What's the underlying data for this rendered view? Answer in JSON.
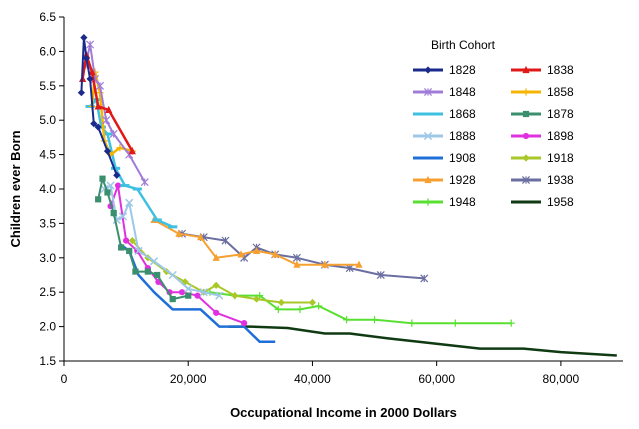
{
  "chart_data": {
    "type": "line",
    "xlabel": "Occupational Income in 2000 Dollars",
    "ylabel": "Children ever Born",
    "xlim": [
      0,
      90000
    ],
    "ylim": [
      1.5,
      6.5
    ],
    "x_ticks": [
      0,
      20000,
      40000,
      60000,
      80000
    ],
    "x_tick_labels": [
      "0",
      "20,000",
      "40,000",
      "60,000",
      "80,000"
    ],
    "y_ticks": [
      1.5,
      2.0,
      2.5,
      3.0,
      3.5,
      4.0,
      4.5,
      5.0,
      5.5,
      6.0,
      6.5
    ],
    "y_tick_labels": [
      "1.5",
      "2.0",
      "2.5",
      "3.0",
      "3.5",
      "4.0",
      "4.5",
      "5.0",
      "5.5",
      "6.0",
      "6.5"
    ],
    "grid": false,
    "legend": {
      "title": "Birth Cohort",
      "placement": "top-right",
      "columns": 2
    },
    "series": [
      {
        "name": "1828",
        "color": "#1a2a8c",
        "marker": "diamond",
        "width": 2,
        "points": [
          [
            2800,
            5.4
          ],
          [
            3200,
            6.2
          ],
          [
            3600,
            5.9
          ],
          [
            4200,
            5.6
          ],
          [
            4800,
            4.95
          ],
          [
            5500,
            4.9
          ],
          [
            7000,
            4.55
          ],
          [
            8500,
            4.2
          ]
        ]
      },
      {
        "name": "1838",
        "color": "#e01818",
        "marker": "triangle",
        "width": 2.5,
        "points": [
          [
            3000,
            5.6
          ],
          [
            3600,
            5.95
          ],
          [
            4500,
            5.7
          ],
          [
            5500,
            5.2
          ],
          [
            7200,
            5.15
          ],
          [
            11000,
            4.55
          ]
        ]
      },
      {
        "name": "1848",
        "color": "#a07cd8",
        "marker": "star",
        "width": 2,
        "points": [
          [
            3500,
            5.8
          ],
          [
            4200,
            6.1
          ],
          [
            5000,
            5.6
          ],
          [
            5800,
            5.5
          ],
          [
            6800,
            5.0
          ],
          [
            8000,
            4.8
          ],
          [
            10500,
            4.5
          ],
          [
            13000,
            4.1
          ]
        ]
      },
      {
        "name": "1858",
        "color": "#f5b400",
        "marker": "plus",
        "width": 2.5,
        "points": [
          [
            4500,
            5.2
          ],
          [
            5000,
            5.7
          ],
          [
            5800,
            5.4
          ],
          [
            6500,
            4.7
          ],
          [
            7500,
            4.5
          ],
          [
            9000,
            4.6
          ],
          [
            11000,
            4.55
          ]
        ]
      },
      {
        "name": "1868",
        "color": "#3ec0e0",
        "marker": "dash",
        "width": 2.5,
        "points": [
          [
            4200,
            5.2
          ],
          [
            5200,
            5.3
          ],
          [
            6000,
            4.9
          ],
          [
            7000,
            4.8
          ],
          [
            8300,
            4.3
          ],
          [
            9800,
            4.05
          ],
          [
            11800,
            4.0
          ],
          [
            15000,
            3.55
          ],
          [
            17500,
            3.45
          ]
        ]
      },
      {
        "name": "1878",
        "color": "#3a8f6e",
        "marker": "square",
        "width": 2,
        "points": [
          [
            5500,
            3.85
          ],
          [
            6200,
            4.15
          ],
          [
            7000,
            3.95
          ],
          [
            8000,
            3.65
          ],
          [
            9200,
            3.15
          ],
          [
            10500,
            3.1
          ],
          [
            11500,
            2.8
          ],
          [
            13500,
            2.8
          ],
          [
            15000,
            2.75
          ],
          [
            17500,
            2.4
          ],
          [
            20000,
            2.45
          ]
        ]
      },
      {
        "name": "1888",
        "color": "#9ec8e8",
        "marker": "x",
        "width": 2,
        "points": [
          [
            6500,
            4.0
          ],
          [
            7500,
            4.05
          ],
          [
            8500,
            3.55
          ],
          [
            9500,
            3.6
          ],
          [
            10500,
            3.8
          ],
          [
            12000,
            3.1
          ],
          [
            14500,
            2.95
          ],
          [
            17500,
            2.75
          ],
          [
            20000,
            2.55
          ],
          [
            22500,
            2.5
          ],
          [
            25000,
            2.45
          ]
        ]
      },
      {
        "name": "1898",
        "color": "#e030e0",
        "marker": "circle",
        "width": 2,
        "points": [
          [
            7500,
            3.75
          ],
          [
            8700,
            4.05
          ],
          [
            10000,
            3.25
          ],
          [
            11800,
            3.1
          ],
          [
            13500,
            2.85
          ],
          [
            15200,
            2.65
          ],
          [
            17000,
            2.5
          ],
          [
            19000,
            2.5
          ],
          [
            21500,
            2.45
          ],
          [
            24500,
            2.2
          ],
          [
            29000,
            2.05
          ]
        ]
      },
      {
        "name": "1908",
        "color": "#1f6fd8",
        "marker": "none",
        "width": 2.5,
        "points": [
          [
            9000,
            3.2
          ],
          [
            10500,
            3.1
          ],
          [
            12000,
            2.75
          ],
          [
            14500,
            2.5
          ],
          [
            17500,
            2.25
          ],
          [
            22000,
            2.25
          ],
          [
            25000,
            2.0
          ],
          [
            29000,
            2.0
          ],
          [
            31500,
            1.78
          ],
          [
            34000,
            1.78
          ]
        ]
      },
      {
        "name": "1918",
        "color": "#a8c82a",
        "marker": "diamond",
        "width": 2,
        "points": [
          [
            11000,
            3.25
          ],
          [
            13500,
            3.0
          ],
          [
            16500,
            2.8
          ],
          [
            19500,
            2.65
          ],
          [
            22500,
            2.5
          ],
          [
            24500,
            2.6
          ],
          [
            27500,
            2.45
          ],
          [
            31000,
            2.4
          ],
          [
            35000,
            2.35
          ],
          [
            40000,
            2.35
          ]
        ]
      },
      {
        "name": "1928",
        "color": "#f5a030",
        "marker": "triangle",
        "width": 2,
        "points": [
          [
            14500,
            3.55
          ],
          [
            18500,
            3.35
          ],
          [
            22000,
            3.3
          ],
          [
            24500,
            3.0
          ],
          [
            28500,
            3.05
          ],
          [
            31000,
            3.1
          ],
          [
            34000,
            3.05
          ],
          [
            37500,
            2.9
          ],
          [
            42000,
            2.9
          ],
          [
            47500,
            2.9
          ]
        ]
      },
      {
        "name": "1938",
        "color": "#6a6ea0",
        "marker": "star",
        "width": 2,
        "points": [
          [
            19000,
            3.35
          ],
          [
            22500,
            3.3
          ],
          [
            26000,
            3.25
          ],
          [
            29000,
            3.0
          ],
          [
            31000,
            3.15
          ],
          [
            34000,
            3.05
          ],
          [
            37500,
            3.0
          ],
          [
            42000,
            2.9
          ],
          [
            46000,
            2.85
          ],
          [
            51000,
            2.75
          ],
          [
            58000,
            2.7
          ]
        ]
      },
      {
        "name": "1948",
        "color": "#58e030",
        "marker": "plus",
        "width": 2,
        "points": [
          [
            23500,
            2.5
          ],
          [
            27500,
            2.45
          ],
          [
            31500,
            2.45
          ],
          [
            34500,
            2.25
          ],
          [
            38000,
            2.25
          ],
          [
            41000,
            2.3
          ],
          [
            45500,
            2.1
          ],
          [
            50000,
            2.1
          ],
          [
            56000,
            2.05
          ],
          [
            63000,
            2.05
          ],
          [
            72000,
            2.05
          ]
        ]
      },
      {
        "name": "1958",
        "color": "#0f3a12",
        "marker": "none",
        "width": 2.5,
        "points": [
          [
            26500,
            2.0
          ],
          [
            30000,
            2.0
          ],
          [
            36000,
            1.98
          ],
          [
            42000,
            1.9
          ],
          [
            46000,
            1.9
          ],
          [
            52000,
            1.83
          ],
          [
            58000,
            1.77
          ],
          [
            67000,
            1.68
          ],
          [
            74000,
            1.68
          ],
          [
            80000,
            1.63
          ],
          [
            89000,
            1.58
          ]
        ]
      }
    ]
  }
}
